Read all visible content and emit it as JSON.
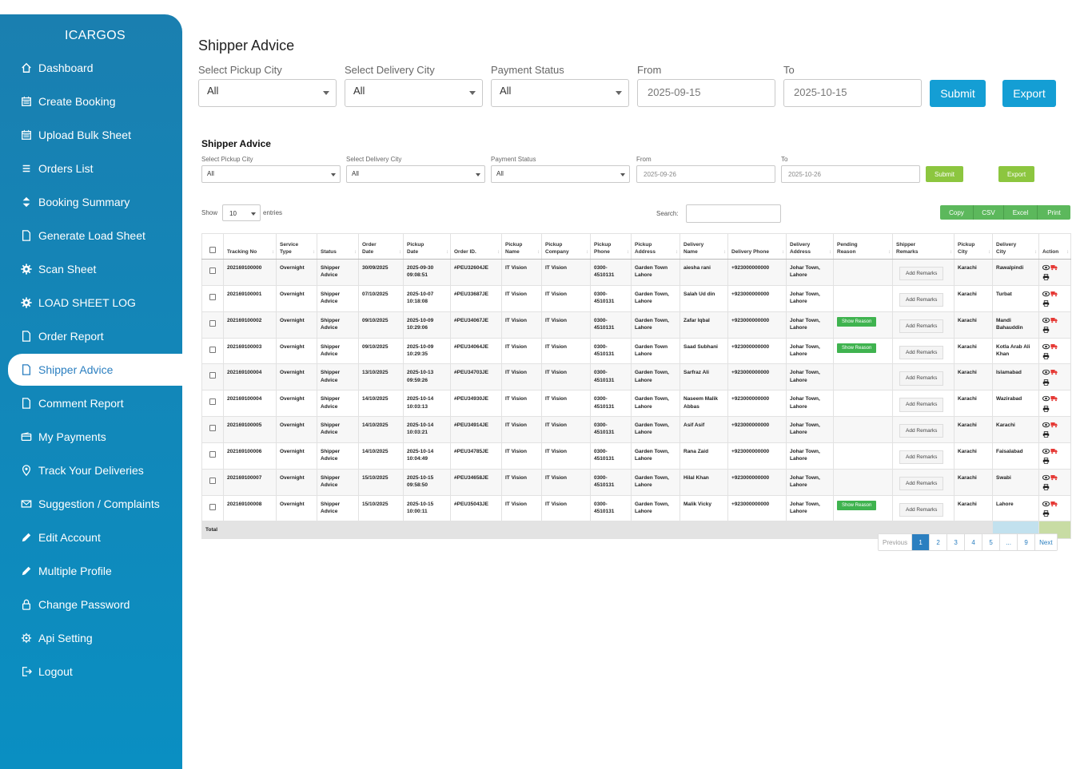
{
  "app": {
    "brand": "ICARGOS"
  },
  "sidebar": {
    "items": [
      {
        "label": "Dashboard",
        "icon": "home-icon"
      },
      {
        "label": "Create Booking",
        "icon": "calendar-icon"
      },
      {
        "label": "Upload Bulk Sheet",
        "icon": "calendar-icon"
      },
      {
        "label": "Orders List",
        "icon": "list-icon"
      },
      {
        "label": "Booking Summary",
        "icon": "sort-icon"
      },
      {
        "label": "Generate Load Sheet",
        "icon": "file-icon"
      },
      {
        "label": "Scan Sheet",
        "icon": "gear-icon"
      },
      {
        "label": "LOAD SHEET LOG",
        "icon": "gear-icon"
      },
      {
        "label": "Order Report",
        "icon": "file-icon"
      },
      {
        "label": "Shipper Advice",
        "icon": "file-icon"
      },
      {
        "label": "Comment Report",
        "icon": "file-icon"
      },
      {
        "label": "My Payments",
        "icon": "wallet-icon"
      },
      {
        "label": "Track Your Deliveries",
        "icon": "map-pin-icon"
      },
      {
        "label": "Suggestion / Complaints",
        "icon": "envelope-icon"
      },
      {
        "label": "Edit Account",
        "icon": "pencil-icon"
      },
      {
        "label": "Multiple Profile",
        "icon": "pencil-icon"
      },
      {
        "label": "Change Password",
        "icon": "lock-icon"
      },
      {
        "label": "Api Setting",
        "icon": "settings-icon"
      },
      {
        "label": "Logout",
        "icon": "logout-icon"
      }
    ],
    "active_index": 9
  },
  "page": {
    "title": "Shipper Advice"
  },
  "filters": {
    "pickup_city_label": "Select Pickup City",
    "pickup_city_value": "All",
    "delivery_city_label": "Select Delivery City",
    "delivery_city_value": "All",
    "payment_status_label": "Payment Status",
    "payment_status_value": "All",
    "from_label": "From",
    "from_value": "2025-09-15",
    "to_label": "To",
    "to_value": "2025-10-15",
    "submit_label": "Submit",
    "export_label": "Export"
  },
  "inner": {
    "title": "Shipper Advice",
    "pickup_city_label": "Select Pickup City",
    "pickup_city_value": "All",
    "delivery_city_label": "Select Delivery City",
    "delivery_city_value": "All",
    "payment_status_label": "Payment Status",
    "payment_status_value": "All",
    "from_label": "From",
    "from_value": "2025-09-26",
    "to_label": "To",
    "to_value": "2025-10-26",
    "submit_label": "Submit",
    "export_label": "Export",
    "show_label": "Show",
    "entries_value": "10",
    "entries_label": "entries",
    "search_label": "Search:",
    "buttons": {
      "copy": "Copy",
      "csv": "CSV",
      "excel": "Excel",
      "print": "Print"
    }
  },
  "table": {
    "columns": [
      {
        "l1": "",
        "l2": "Tracking No"
      },
      {
        "l1": "Service",
        "l2": "Type"
      },
      {
        "l1": "",
        "l2": "Status"
      },
      {
        "l1": "Order",
        "l2": "Date"
      },
      {
        "l1": "Pickup",
        "l2": "Date"
      },
      {
        "l1": "",
        "l2": "Order ID."
      },
      {
        "l1": "Pickup",
        "l2": "Name"
      },
      {
        "l1": "Pickup",
        "l2": "Company"
      },
      {
        "l1": "Pickup",
        "l2": "Phone"
      },
      {
        "l1": "Pickup",
        "l2": "Address"
      },
      {
        "l1": "Delivery",
        "l2": "Name"
      },
      {
        "l1": "",
        "l2": "Delivery Phone"
      },
      {
        "l1": "Delivery",
        "l2": "Address"
      },
      {
        "l1": "Pending",
        "l2": "Reason"
      },
      {
        "l1": "Shipper",
        "l2": "Remarks"
      },
      {
        "l1": "Pickup",
        "l2": "City"
      },
      {
        "l1": "Delivery",
        "l2": "City"
      },
      {
        "l1": "",
        "l2": "Action"
      }
    ],
    "show_reason_label": "Show Reason",
    "add_remarks_label": "Add Remarks",
    "rows": [
      {
        "tracking": "202169100000",
        "service": "Overnight",
        "status1": "Shipper",
        "status2": "Advice",
        "order_date": "30/09/2025",
        "pickup_date1": "2025-09-30",
        "pickup_date2": "09:08:51",
        "order_id": "#PEU32604JE",
        "pickup_name": "IT Vision",
        "pickup_company": "IT Vision",
        "pickup_phone1": "0300-",
        "pickup_phone2": "4510131",
        "pickup_addr1": "Garden Town",
        "pickup_addr2": "Lahore",
        "delivery_name1": "aiesha rani",
        "delivery_name2": "",
        "delivery_phone": "+923000000000",
        "delivery_addr1": "Johar Town,",
        "delivery_addr2": "Lahore",
        "pending": false,
        "pickup_city": "Karachi",
        "delivery_city1": "Rawalpindi",
        "delivery_city2": ""
      },
      {
        "tracking": "202169100001",
        "service": "Overnight",
        "status1": "Shipper",
        "status2": "Advice",
        "order_date": "07/10/2025",
        "pickup_date1": "2025-10-07",
        "pickup_date2": "10:18:08",
        "order_id": "#PEU33687JE",
        "pickup_name": "IT Vision",
        "pickup_company": "IT Vision",
        "pickup_phone1": "0300-",
        "pickup_phone2": "4510131",
        "pickup_addr1": "Garden Town,",
        "pickup_addr2": "Lahore",
        "delivery_name1": "Salah Ud din",
        "delivery_name2": "",
        "delivery_phone": "+923000000000",
        "delivery_addr1": "Johar Town,",
        "delivery_addr2": "Lahore",
        "pending": false,
        "pickup_city": "Karachi",
        "delivery_city1": "Turbat",
        "delivery_city2": ""
      },
      {
        "tracking": "202169100002",
        "service": "Overnight",
        "status1": "Shipper",
        "status2": "Advice",
        "order_date": "09/10/2025",
        "pickup_date1": "2025-10-09",
        "pickup_date2": "10:29:06",
        "order_id": "#PEU34067JE",
        "pickup_name": "IT Vision",
        "pickup_company": "IT Vision",
        "pickup_phone1": "0300-",
        "pickup_phone2": "4510131",
        "pickup_addr1": "Garden Town,",
        "pickup_addr2": "Lahore",
        "delivery_name1": "Zafar Iqbal",
        "delivery_name2": "",
        "delivery_phone": "+923000000000",
        "delivery_addr1": "Johar Town,",
        "delivery_addr2": "Lahore",
        "pending": true,
        "pickup_city": "Karachi",
        "delivery_city1": "Mandi",
        "delivery_city2": "Bahauddin"
      },
      {
        "tracking": "202169100003",
        "service": "Overnight",
        "status1": "Shipper",
        "status2": "Advice",
        "order_date": "09/10/2025",
        "pickup_date1": "2025-10-09",
        "pickup_date2": "10:29:35",
        "order_id": "#PEU34064JE",
        "pickup_name": "IT Vision",
        "pickup_company": "IT Vision",
        "pickup_phone1": "0300-",
        "pickup_phone2": "4510131",
        "pickup_addr1": "Garden Town",
        "pickup_addr2": "Lahore",
        "delivery_name1": "Saad Subhani",
        "delivery_name2": "",
        "delivery_phone": "+923000000000",
        "delivery_addr1": "Johar Town,",
        "delivery_addr2": "Lahore",
        "pending": true,
        "pickup_city": "Karachi",
        "delivery_city1": "Kotla Arab Ali",
        "delivery_city2": "Khan"
      },
      {
        "tracking": "202169100004",
        "service": "Overnight",
        "status1": "Shipper",
        "status2": "Advice",
        "order_date": "13/10/2025",
        "pickup_date1": "2025-10-13",
        "pickup_date2": "09:59:26",
        "order_id": "#PEU34703JE",
        "pickup_name": "IT Vision",
        "pickup_company": "IT Vision",
        "pickup_phone1": "0300-",
        "pickup_phone2": "4510131",
        "pickup_addr1": "Garden Town,",
        "pickup_addr2": "Lahore",
        "delivery_name1": "Sarfraz Ali",
        "delivery_name2": "",
        "delivery_phone": "+923000000000",
        "delivery_addr1": "Johar Town,",
        "delivery_addr2": "Lahore",
        "pending": false,
        "pickup_city": "Karachi",
        "delivery_city1": "Islamabad",
        "delivery_city2": ""
      },
      {
        "tracking": "202169100004",
        "service": "Overnight",
        "status1": "Shipper",
        "status2": "Advice",
        "order_date": "14/10/2025",
        "pickup_date1": "2025-10-14",
        "pickup_date2": "10:03:13",
        "order_id": "#PEU34930JE",
        "pickup_name": "IT Vision",
        "pickup_company": "IT Vision",
        "pickup_phone1": "0300-",
        "pickup_phone2": "4510131",
        "pickup_addr1": "Garden Town,",
        "pickup_addr2": "Lahore",
        "delivery_name1": "Naseem Malik",
        "delivery_name2": "Abbas",
        "delivery_phone": "+923000000000",
        "delivery_addr1": "Johar Town,",
        "delivery_addr2": "Lahore",
        "pending": false,
        "pickup_city": "Karachi",
        "delivery_city1": "Wazirabad",
        "delivery_city2": ""
      },
      {
        "tracking": "202169100005",
        "service": "Overnight",
        "status1": "Shipper",
        "status2": "Advice",
        "order_date": "14/10/2025",
        "pickup_date1": "2025-10-14",
        "pickup_date2": "10:03:21",
        "order_id": "#PEU34914JE",
        "pickup_name": "IT Vision",
        "pickup_company": "IT Vision",
        "pickup_phone1": "0300-",
        "pickup_phone2": "4510131",
        "pickup_addr1": "Garden Town,",
        "pickup_addr2": "Lahore",
        "delivery_name1": "Asif Asif",
        "delivery_name2": "",
        "delivery_phone": "+923000000000",
        "delivery_addr1": "Johar Town,",
        "delivery_addr2": "Lahore",
        "pending": false,
        "pickup_city": "Karachi",
        "delivery_city1": "Karachi",
        "delivery_city2": ""
      },
      {
        "tracking": "202169100006",
        "service": "Overnight",
        "status1": "Shipper",
        "status2": "Advice",
        "order_date": "14/10/2025",
        "pickup_date1": "2025-10-14",
        "pickup_date2": "10:04:49",
        "order_id": "#PEU34785JE",
        "pickup_name": "IT Vision",
        "pickup_company": "IT Vision",
        "pickup_phone1": "0300-",
        "pickup_phone2": "4510131",
        "pickup_addr1": "Garden Town,",
        "pickup_addr2": "Lahore",
        "delivery_name1": "Rana Zaid",
        "delivery_name2": "",
        "delivery_phone": "+923000000000",
        "delivery_addr1": "Johar Town,",
        "delivery_addr2": "Lahore",
        "pending": false,
        "pickup_city": "Karachi",
        "delivery_city1": "Faisalabad",
        "delivery_city2": ""
      },
      {
        "tracking": "202169100007",
        "service": "Overnight",
        "status1": "Shipper",
        "status2": "Advice",
        "order_date": "15/10/2025",
        "pickup_date1": "2025-10-15",
        "pickup_date2": "09:58:50",
        "order_id": "#PEU34658JE",
        "pickup_name": "IT Vision",
        "pickup_company": "IT Vision",
        "pickup_phone1": "0300-",
        "pickup_phone2": "4510131",
        "pickup_addr1": "Garden Town,",
        "pickup_addr2": "Lahore",
        "delivery_name1": "Hilal Khan",
        "delivery_name2": "",
        "delivery_phone": "+923000000000",
        "delivery_addr1": "Johar Town,",
        "delivery_addr2": "Lahore",
        "pending": false,
        "pickup_city": "Karachi",
        "delivery_city1": "Swabi",
        "delivery_city2": ""
      },
      {
        "tracking": "202169100008",
        "service": "Overnight",
        "status1": "Shipper",
        "status2": "Advice",
        "order_date": "15/10/2025",
        "pickup_date1": "2025-10-15",
        "pickup_date2": "10:00:11",
        "order_id": "#PEU35043JE",
        "pickup_name": "IT Vision",
        "pickup_company": "IT Vision",
        "pickup_phone1": "0300-",
        "pickup_phone2": "4510131",
        "pickup_addr1": "Garden Town,",
        "pickup_addr2": "Lahore",
        "delivery_name1": "Malik Vicky",
        "delivery_name2": "",
        "delivery_phone": "+923000000000",
        "delivery_addr1": "Johar Town,",
        "delivery_addr2": "Lahore",
        "pending": true,
        "pickup_city": "Karachi",
        "delivery_city1": "Lahore",
        "delivery_city2": ""
      }
    ],
    "total_label": "Total"
  },
  "pagination": {
    "previous": "Previous",
    "pages": [
      "1",
      "2",
      "3",
      "4",
      "5",
      "...",
      "9"
    ],
    "current": "1",
    "next": "Next"
  },
  "colors": {
    "sidebar": "#1a7fb0",
    "accent": "#149ed4",
    "green": "#8cc63f",
    "dt_button": "#5cb85c",
    "icon_red": "#e53935"
  }
}
